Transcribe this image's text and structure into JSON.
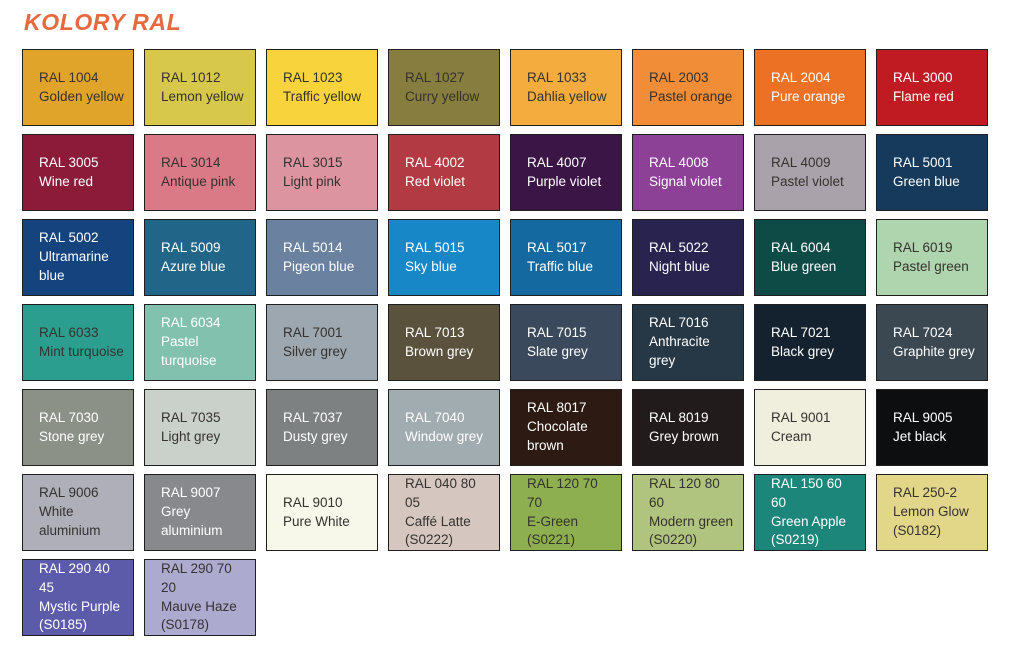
{
  "title": "KOLORY RAL",
  "theme": {
    "page_background": "#ffffff",
    "title_color": "#e6683c",
    "swatch_border_color": "#1f1f1f",
    "dark_text": "#35322f",
    "light_text": "#ffffff"
  },
  "swatches": [
    {
      "code": "RAL 1004",
      "name": "Golden yellow",
      "bg": "#e1a42b",
      "fg": "dark"
    },
    {
      "code": "RAL 1012",
      "name": "Lemon yellow",
      "bg": "#d7c74b",
      "fg": "dark"
    },
    {
      "code": "RAL 1023",
      "name": "Traffic yellow",
      "bg": "#f9d33c",
      "fg": "dark"
    },
    {
      "code": "RAL 1027",
      "name": "Curry yellow",
      "bg": "#867d3e",
      "fg": "dark"
    },
    {
      "code": "RAL 1033",
      "name": "Dahlia yellow",
      "bg": "#f4ac3e",
      "fg": "dark"
    },
    {
      "code": "RAL 2003",
      "name": "Pastel orange",
      "bg": "#f08d36",
      "fg": "dark"
    },
    {
      "code": "RAL 2004",
      "name": "Pure orange",
      "bg": "#ec7125",
      "fg": "light"
    },
    {
      "code": "RAL 3000",
      "name": "Flame red",
      "bg": "#c01b23",
      "fg": "light"
    },
    {
      "code": "RAL 3005",
      "name": "Wine red",
      "bg": "#8c1b39",
      "fg": "light"
    },
    {
      "code": "RAL 3014",
      "name": "Antique pink",
      "bg": "#db7a87",
      "fg": "dark"
    },
    {
      "code": "RAL 3015",
      "name": "Light pink",
      "bg": "#dc94a1",
      "fg": "dark"
    },
    {
      "code": "RAL 4002",
      "name": "Red violet",
      "bg": "#b23b43",
      "fg": "light"
    },
    {
      "code": "RAL 4007",
      "name": "Purple violet",
      "bg": "#3a1545",
      "fg": "light"
    },
    {
      "code": "RAL 4008",
      "name": "Signal violet",
      "bg": "#8c4197",
      "fg": "light"
    },
    {
      "code": "RAL 4009",
      "name": "Pastel violet",
      "bg": "#a9a2aa",
      "fg": "dark"
    },
    {
      "code": "RAL 5001",
      "name": "Green blue",
      "bg": "#153a5c",
      "fg": "light"
    },
    {
      "code": "RAL 5002",
      "name": "Ultramarine blue",
      "bg": "#15437e",
      "fg": "light"
    },
    {
      "code": "RAL 5009",
      "name": "Azure blue",
      "bg": "#216689",
      "fg": "light"
    },
    {
      "code": "RAL 5014",
      "name": "Pigeon blue",
      "bg": "#6a81a0",
      "fg": "light"
    },
    {
      "code": "RAL 5015",
      "name": "Sky blue",
      "bg": "#1787c8",
      "fg": "light"
    },
    {
      "code": "RAL 5017",
      "name": "Traffic blue",
      "bg": "#146aa0",
      "fg": "light"
    },
    {
      "code": "RAL 5022",
      "name": "Night blue",
      "bg": "#28234f",
      "fg": "light"
    },
    {
      "code": "RAL 6004",
      "name": "Blue green",
      "bg": "#0e4b46",
      "fg": "light"
    },
    {
      "code": "RAL 6019",
      "name": "Pastel green",
      "bg": "#afd5ae",
      "fg": "dark"
    },
    {
      "code": "RAL 6033",
      "name": "Mint turquoise",
      "bg": "#2c9e90",
      "fg": "dark"
    },
    {
      "code": "RAL 6034",
      "name": "Pastel turquoise",
      "bg": "#83c1af",
      "fg": "light"
    },
    {
      "code": "RAL 7001",
      "name": "Silver grey",
      "bg": "#9da7af",
      "fg": "dark"
    },
    {
      "code": "RAL 7013",
      "name": "Brown grey",
      "bg": "#5a523c",
      "fg": "light"
    },
    {
      "code": "RAL 7015",
      "name": "Slate grey",
      "bg": "#3a4a5c",
      "fg": "light"
    },
    {
      "code": "RAL 7016",
      "name": "Anthracite grey",
      "bg": "#263845",
      "fg": "light"
    },
    {
      "code": "RAL 7021",
      "name": "Black grey",
      "bg": "#14222f",
      "fg": "light"
    },
    {
      "code": "RAL 7024",
      "name": "Graphite grey",
      "bg": "#3b4751",
      "fg": "light"
    },
    {
      "code": "RAL 7030",
      "name": "Stone grey",
      "bg": "#8c9187",
      "fg": "light"
    },
    {
      "code": "RAL 7035",
      "name": "Light grey",
      "bg": "#cad1ca",
      "fg": "dark"
    },
    {
      "code": "RAL 7037",
      "name": "Dusty grey",
      "bg": "#7e8182",
      "fg": "light"
    },
    {
      "code": "RAL 7040",
      "name": "Window grey",
      "bg": "#a1acb1",
      "fg": "light"
    },
    {
      "code": "RAL 8017",
      "name": "Chocolate brown",
      "bg": "#2d1a12",
      "fg": "light"
    },
    {
      "code": "RAL 8019",
      "name": "Grey brown",
      "bg": "#211b1c",
      "fg": "light"
    },
    {
      "code": "RAL 9001",
      "name": "Cream",
      "bg": "#f0eedc",
      "fg": "dark"
    },
    {
      "code": "RAL 9005",
      "name": "Jet black",
      "bg": "#0d0e10",
      "fg": "light"
    },
    {
      "code": "RAL 9006",
      "name": "White aluminium",
      "bg": "#aeafb8",
      "fg": "dark"
    },
    {
      "code": "RAL 9007",
      "name": "Grey aluminium",
      "bg": "#88898d",
      "fg": "light"
    },
    {
      "code": "RAL 9010",
      "name": "Pure White",
      "bg": "#f8f8ea",
      "fg": "dark"
    },
    {
      "code": "RAL 040 80 05",
      "name": "Caffé Latte",
      "note": "(S0222)",
      "bg": "#d5c7c0",
      "fg": "dark"
    },
    {
      "code": "RAL 120 70 70",
      "name": "E-Green",
      "note": "(S0221)",
      "bg": "#8eaf4f",
      "fg": "dark"
    },
    {
      "code": "RAL 120 80 60",
      "name": "Modern green",
      "note": "(S0220)",
      "bg": "#b1c47f",
      "fg": "dark"
    },
    {
      "code": "RAL 150 60 60",
      "name": "Green Apple",
      "note": "(S0219)",
      "bg": "#1b8679",
      "fg": "light"
    },
    {
      "code": "RAL 250-2",
      "name": "Lemon Glow",
      "note": "(S0182)",
      "bg": "#e2d788",
      "fg": "dark"
    },
    {
      "code": "RAL 290 40 45",
      "name": "Mystic Purple",
      "note": "(S0185)",
      "bg": "#5c5baa",
      "fg": "light"
    },
    {
      "code": "RAL 290 70 20",
      "name": "Mauve Haze",
      "note": "(S0178)",
      "bg": "#adaad0",
      "fg": "dark"
    }
  ]
}
